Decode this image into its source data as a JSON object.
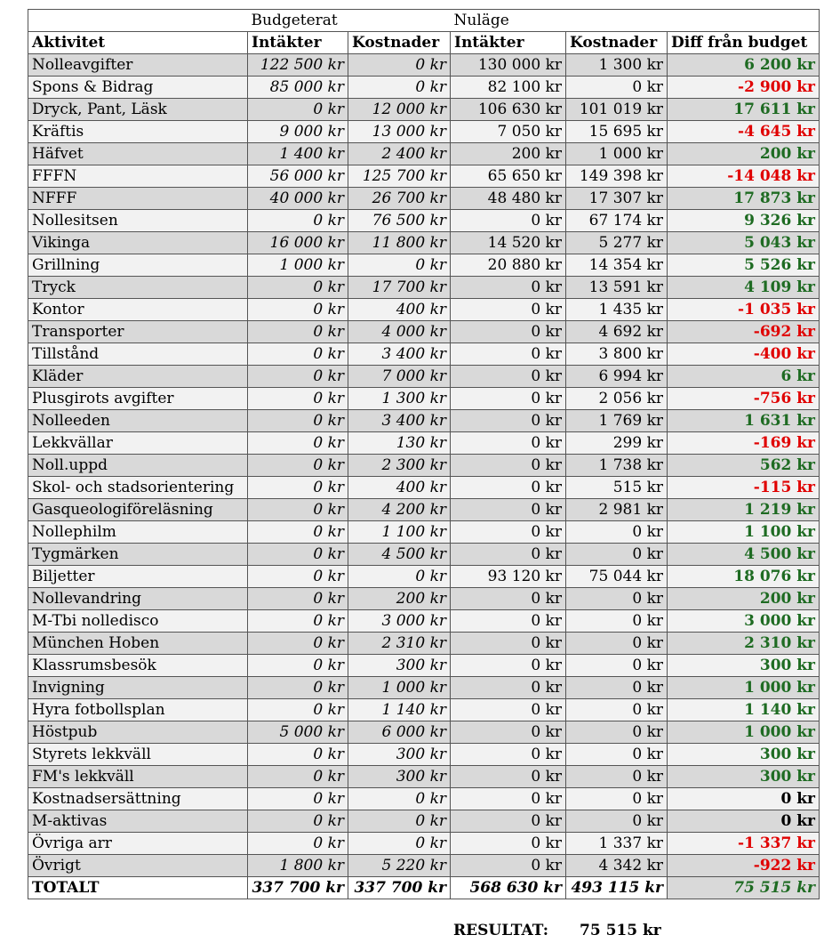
{
  "header": {
    "group_budget": "Budgeterat",
    "group_current": "Nuläge",
    "col_activity": "Aktivitet",
    "col_income": "Intäkter",
    "col_cost": "Kostnader",
    "col_diff": "Diff från budget"
  },
  "rows": [
    {
      "name": "Nolleavgifter",
      "bi": "122 500 kr",
      "bk": "0 kr",
      "ni": "130 000 kr",
      "nk": "1 300 kr",
      "diff": "6 200 kr",
      "sign": "pos"
    },
    {
      "name": "Spons & Bidrag",
      "bi": "85 000 kr",
      "bk": "0 kr",
      "ni": "82 100 kr",
      "nk": "0 kr",
      "diff": "-2 900 kr",
      "sign": "neg"
    },
    {
      "name": "Dryck, Pant, Läsk",
      "bi": "0 kr",
      "bk": "12 000 kr",
      "ni": "106 630 kr",
      "nk": "101 019 kr",
      "diff": "17 611 kr",
      "sign": "pos"
    },
    {
      "name": "Kräftis",
      "bi": "9 000 kr",
      "bk": "13 000 kr",
      "ni": "7 050 kr",
      "nk": "15 695 kr",
      "diff": "-4 645 kr",
      "sign": "neg"
    },
    {
      "name": "Häfvet",
      "bi": "1 400 kr",
      "bk": "2 400 kr",
      "ni": "200 kr",
      "nk": "1 000 kr",
      "diff": "200 kr",
      "sign": "pos"
    },
    {
      "name": "FFFN",
      "bi": "56 000 kr",
      "bk": "125 700 kr",
      "ni": "65 650 kr",
      "nk": "149 398 kr",
      "diff": "-14 048 kr",
      "sign": "neg"
    },
    {
      "name": "NFFF",
      "bi": "40 000 kr",
      "bk": "26 700 kr",
      "ni": "48 480 kr",
      "nk": "17 307 kr",
      "diff": "17 873 kr",
      "sign": "pos"
    },
    {
      "name": "Nollesitsen",
      "bi": "0 kr",
      "bk": "76 500 kr",
      "ni": "0 kr",
      "nk": "67 174 kr",
      "diff": "9 326 kr",
      "sign": "pos"
    },
    {
      "name": "Vikinga",
      "bi": "16 000 kr",
      "bk": "11 800 kr",
      "ni": "14 520 kr",
      "nk": "5 277 kr",
      "diff": "5 043 kr",
      "sign": "pos"
    },
    {
      "name": "Grillning",
      "bi": "1 000 kr",
      "bk": "0 kr",
      "ni": "20 880 kr",
      "nk": "14 354 kr",
      "diff": "5 526 kr",
      "sign": "pos"
    },
    {
      "name": "Tryck",
      "bi": "0 kr",
      "bk": "17 700 kr",
      "ni": "0 kr",
      "nk": "13 591 kr",
      "diff": "4 109 kr",
      "sign": "pos"
    },
    {
      "name": "Kontor",
      "bi": "0 kr",
      "bk": "400 kr",
      "ni": "0 kr",
      "nk": "1 435 kr",
      "diff": "-1 035 kr",
      "sign": "neg"
    },
    {
      "name": "Transporter",
      "bi": "0 kr",
      "bk": "4 000 kr",
      "ni": "0 kr",
      "nk": "4 692 kr",
      "diff": "-692 kr",
      "sign": "neg"
    },
    {
      "name": "Tillstånd",
      "bi": "0 kr",
      "bk": "3 400 kr",
      "ni": "0 kr",
      "nk": "3 800 kr",
      "diff": "-400 kr",
      "sign": "neg"
    },
    {
      "name": "Kläder",
      "bi": "0 kr",
      "bk": "7 000 kr",
      "ni": "0 kr",
      "nk": "6 994 kr",
      "diff": "6 kr",
      "sign": "pos"
    },
    {
      "name": "Plusgirots avgifter",
      "bi": "0 kr",
      "bk": "1 300 kr",
      "ni": "0 kr",
      "nk": "2 056 kr",
      "diff": "-756 kr",
      "sign": "neg"
    },
    {
      "name": "Nolleeden",
      "bi": "0 kr",
      "bk": "3 400 kr",
      "ni": "0 kr",
      "nk": "1 769 kr",
      "diff": "1 631 kr",
      "sign": "pos"
    },
    {
      "name": "Lekkvällar",
      "bi": "0 kr",
      "bk": "130 kr",
      "ni": "0 kr",
      "nk": "299 kr",
      "diff": "-169 kr",
      "sign": "neg"
    },
    {
      "name": "Noll.uppd",
      "bi": "0 kr",
      "bk": "2 300 kr",
      "ni": "0 kr",
      "nk": "1 738 kr",
      "diff": "562 kr",
      "sign": "pos"
    },
    {
      "name": "Skol- och stadsorientering",
      "bi": "0 kr",
      "bk": "400 kr",
      "ni": "0 kr",
      "nk": "515 kr",
      "diff": "-115 kr",
      "sign": "neg"
    },
    {
      "name": "Gasqueologiföreläsning",
      "bi": "0 kr",
      "bk": "4 200 kr",
      "ni": "0 kr",
      "nk": "2 981 kr",
      "diff": "1 219 kr",
      "sign": "pos"
    },
    {
      "name": "Nollephilm",
      "bi": "0 kr",
      "bk": "1 100 kr",
      "ni": "0 kr",
      "nk": "0 kr",
      "diff": "1 100 kr",
      "sign": "pos"
    },
    {
      "name": "Tygmärken",
      "bi": "0 kr",
      "bk": "4 500 kr",
      "ni": "0 kr",
      "nk": "0 kr",
      "diff": "4 500 kr",
      "sign": "pos"
    },
    {
      "name": "Biljetter",
      "bi": "0 kr",
      "bk": "0 kr",
      "ni": "93 120 kr",
      "nk": "75 044 kr",
      "diff": "18 076 kr",
      "sign": "pos"
    },
    {
      "name": "Nollevandring",
      "bi": "0 kr",
      "bk": "200 kr",
      "ni": "0 kr",
      "nk": "0 kr",
      "diff": "200 kr",
      "sign": "pos"
    },
    {
      "name": "M-Tbi nolledisco",
      "bi": "0 kr",
      "bk": "3 000 kr",
      "ni": "0 kr",
      "nk": "0 kr",
      "diff": "3 000 kr",
      "sign": "pos"
    },
    {
      "name": "München Hoben",
      "bi": "0 kr",
      "bk": "2 310 kr",
      "ni": "0 kr",
      "nk": "0 kr",
      "diff": "2 310 kr",
      "sign": "pos"
    },
    {
      "name": "Klassrumsbesök",
      "bi": "0 kr",
      "bk": "300 kr",
      "ni": "0 kr",
      "nk": "0 kr",
      "diff": "300 kr",
      "sign": "pos"
    },
    {
      "name": "Invigning",
      "bi": "0 kr",
      "bk": "1 000 kr",
      "ni": "0 kr",
      "nk": "0 kr",
      "diff": "1 000 kr",
      "sign": "pos"
    },
    {
      "name": "Hyra fotbollsplan",
      "bi": "0 kr",
      "bk": "1 140 kr",
      "ni": "0 kr",
      "nk": "0 kr",
      "diff": "1 140 kr",
      "sign": "pos"
    },
    {
      "name": "Höstpub",
      "bi": "5 000 kr",
      "bk": "6 000 kr",
      "ni": "0 kr",
      "nk": "0 kr",
      "diff": "1 000 kr",
      "sign": "pos"
    },
    {
      "name": "Styrets lekkväll",
      "bi": "0 kr",
      "bk": "300 kr",
      "ni": "0 kr",
      "nk": "0 kr",
      "diff": "300 kr",
      "sign": "pos"
    },
    {
      "name": "FM's lekkväll",
      "bi": "0 kr",
      "bk": "300 kr",
      "ni": "0 kr",
      "nk": "0 kr",
      "diff": "300 kr",
      "sign": "pos"
    },
    {
      "name": "Kostnadsersättning",
      "bi": "0 kr",
      "bk": "0 kr",
      "ni": "0 kr",
      "nk": "0 kr",
      "diff": "0 kr",
      "sign": "zero"
    },
    {
      "name": "M-aktivas",
      "bi": "0 kr",
      "bk": "0 kr",
      "ni": "0 kr",
      "nk": "0 kr",
      "diff": "0 kr",
      "sign": "zero"
    },
    {
      "name": "Övriga arr",
      "bi": "0 kr",
      "bk": "0 kr",
      "ni": "0 kr",
      "nk": "1 337 kr",
      "diff": "-1 337 kr",
      "sign": "neg"
    },
    {
      "name": "Övrigt",
      "bi": "1 800 kr",
      "bk": "5 220 kr",
      "ni": "0 kr",
      "nk": "4 342 kr",
      "diff": "-922 kr",
      "sign": "neg"
    }
  ],
  "total": {
    "name": "TOTALT",
    "bi": "337 700 kr",
    "bk": "337 700 kr",
    "ni": "568 630 kr",
    "nk": "493 115 kr",
    "diff": "75 515 kr"
  },
  "result": {
    "label": "RESULTAT:",
    "value": "75 515 kr"
  },
  "colors": {
    "positive": "#1e6b22",
    "negative": "#e00000",
    "shade_dark": "#d9d9d9",
    "shade_light": "#f2f2f2"
  }
}
